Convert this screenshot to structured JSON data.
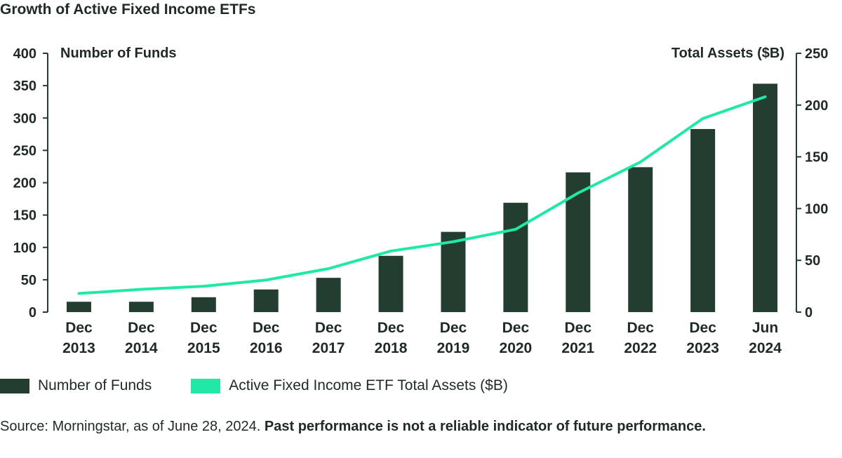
{
  "title": "Growth of Active Fixed Income ETFs",
  "chart_data": {
    "type": "bar",
    "categories": [
      [
        "Dec",
        "2013"
      ],
      [
        "Dec",
        "2014"
      ],
      [
        "Dec",
        "2015"
      ],
      [
        "Dec",
        "2016"
      ],
      [
        "Dec",
        "2017"
      ],
      [
        "Dec",
        "2018"
      ],
      [
        "Dec",
        "2019"
      ],
      [
        "Dec",
        "2020"
      ],
      [
        "Dec",
        "2021"
      ],
      [
        "Dec",
        "2022"
      ],
      [
        "Dec",
        "2023"
      ],
      [
        "Jun",
        "2024"
      ]
    ],
    "series": [
      {
        "name": "Number of Funds",
        "type": "bar",
        "axis": "left",
        "color": "#233d31",
        "values": [
          16,
          16,
          23,
          35,
          53,
          87,
          124,
          169,
          216,
          224,
          283,
          353
        ]
      },
      {
        "name": "Active Fixed Income ETF Total Assets ($B)",
        "type": "line",
        "axis": "right",
        "color": "#20e8a6",
        "values": [
          18,
          22,
          25,
          31,
          42,
          59,
          68,
          80,
          115,
          145,
          187,
          208
        ]
      }
    ],
    "y_left": {
      "label": "Number of Funds",
      "range": [
        0,
        400
      ],
      "ticks": [
        0,
        50,
        100,
        150,
        200,
        250,
        300,
        350,
        400
      ]
    },
    "y_right": {
      "label": "Total Assets ($B)",
      "range": [
        0,
        250
      ],
      "ticks": [
        0,
        50,
        100,
        150,
        200,
        250
      ]
    },
    "grid": false,
    "legend_position": "bottom-left"
  },
  "legend": {
    "bar_label": "Number of Funds",
    "line_label": "Active Fixed Income ETF Total Assets ($B)"
  },
  "source": {
    "prefix": "Source: Morningstar, as of June 28, 2024. ",
    "bold": "Past performance is not a reliable indicator of future performance."
  }
}
